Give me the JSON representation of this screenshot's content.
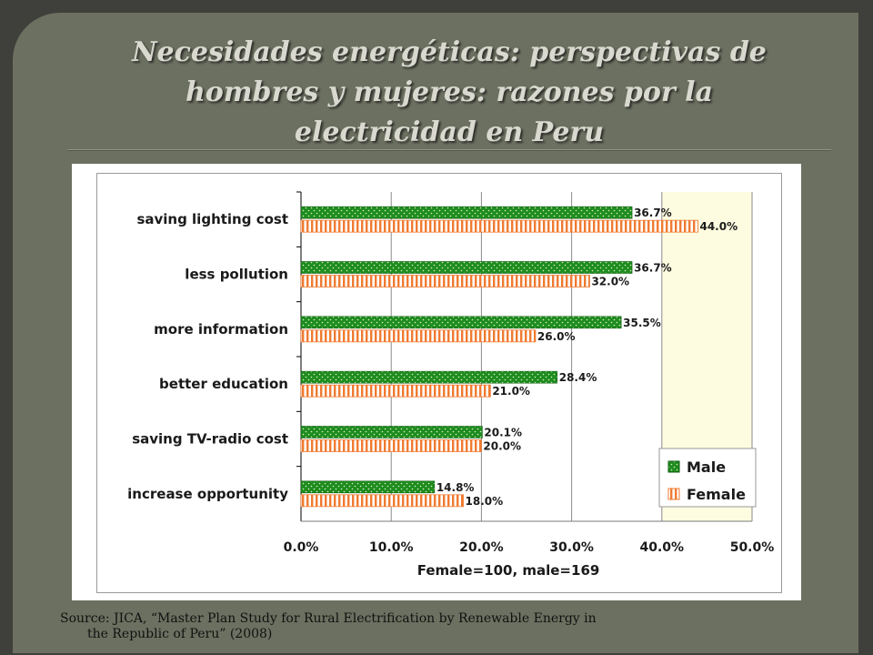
{
  "slide": {
    "title_line1": "Necesidades energéticas: perspectivas de",
    "title_line2": "hombres y mujeres: razones por la",
    "title_line3": "electricidad en Peru",
    "caption_line1": "Source: JICA, “Master Plan Study for Rural Electrification by Renewable Energy in",
    "caption_line2": "the Republic of Peru” (2008)"
  },
  "colors": {
    "male": "#1e8c1e",
    "female": "#f07a30",
    "plot_bg": "#fefce0",
    "slide_bg": "#6b7060"
  },
  "chart_data": {
    "type": "bar",
    "orientation": "horizontal",
    "categories": [
      "saving lighting cost",
      "less pollution",
      "more information",
      "better education",
      "saving TV-radio cost",
      "increase opportunity"
    ],
    "series": [
      {
        "name": "Male",
        "values": [
          36.7,
          36.7,
          35.5,
          28.4,
          20.1,
          14.8
        ],
        "labels": [
          "36.7%",
          "36.7%",
          "35.5%",
          "28.4%",
          "20.1%",
          "14.8%"
        ]
      },
      {
        "name": "Female",
        "values": [
          44.0,
          32.0,
          26.0,
          21.0,
          20.0,
          18.0
        ],
        "labels": [
          "44.0%",
          "32.0%",
          "26.0%",
          "21.0%",
          "20.0%",
          "18.0%"
        ]
      }
    ],
    "xlim": [
      0,
      50
    ],
    "ticks": [
      0,
      10,
      20,
      30,
      40,
      50
    ],
    "tick_labels": [
      "0.0%",
      "10.0%",
      "20.0%",
      "30.0%",
      "40.0%",
      "50.0%"
    ],
    "xlabel": "Female=100, male=169",
    "legend": "right",
    "grid": true
  }
}
